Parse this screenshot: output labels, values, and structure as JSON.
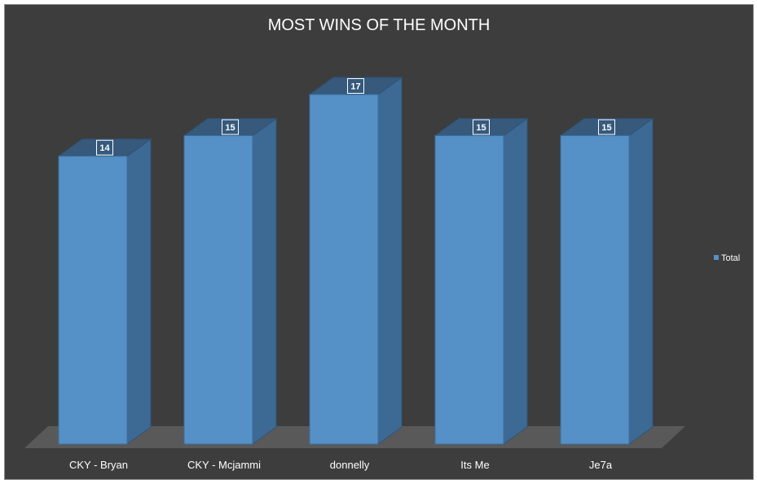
{
  "chart_data": {
    "type": "bar",
    "title": "MOST WINS OF THE MONTH",
    "categories": [
      "CKY - Bryan",
      "CKY - Mcjammi",
      "donnelly",
      "Its Me",
      "Je7a"
    ],
    "series": [
      {
        "name": "Total",
        "values": [
          14,
          15,
          17,
          15,
          15
        ]
      }
    ],
    "value_labels": [
      "14",
      "15",
      "17",
      "15",
      "15"
    ],
    "ylim": [
      0,
      17
    ],
    "grid": false,
    "legend_position": "right",
    "three_d": true,
    "colors": {
      "background": "#3d3d3d",
      "bar_front": "#5590c6",
      "bar_side": "#3d6a94",
      "bar_top": "#36597c",
      "floor": "#595959",
      "text": "#ffffff"
    }
  }
}
